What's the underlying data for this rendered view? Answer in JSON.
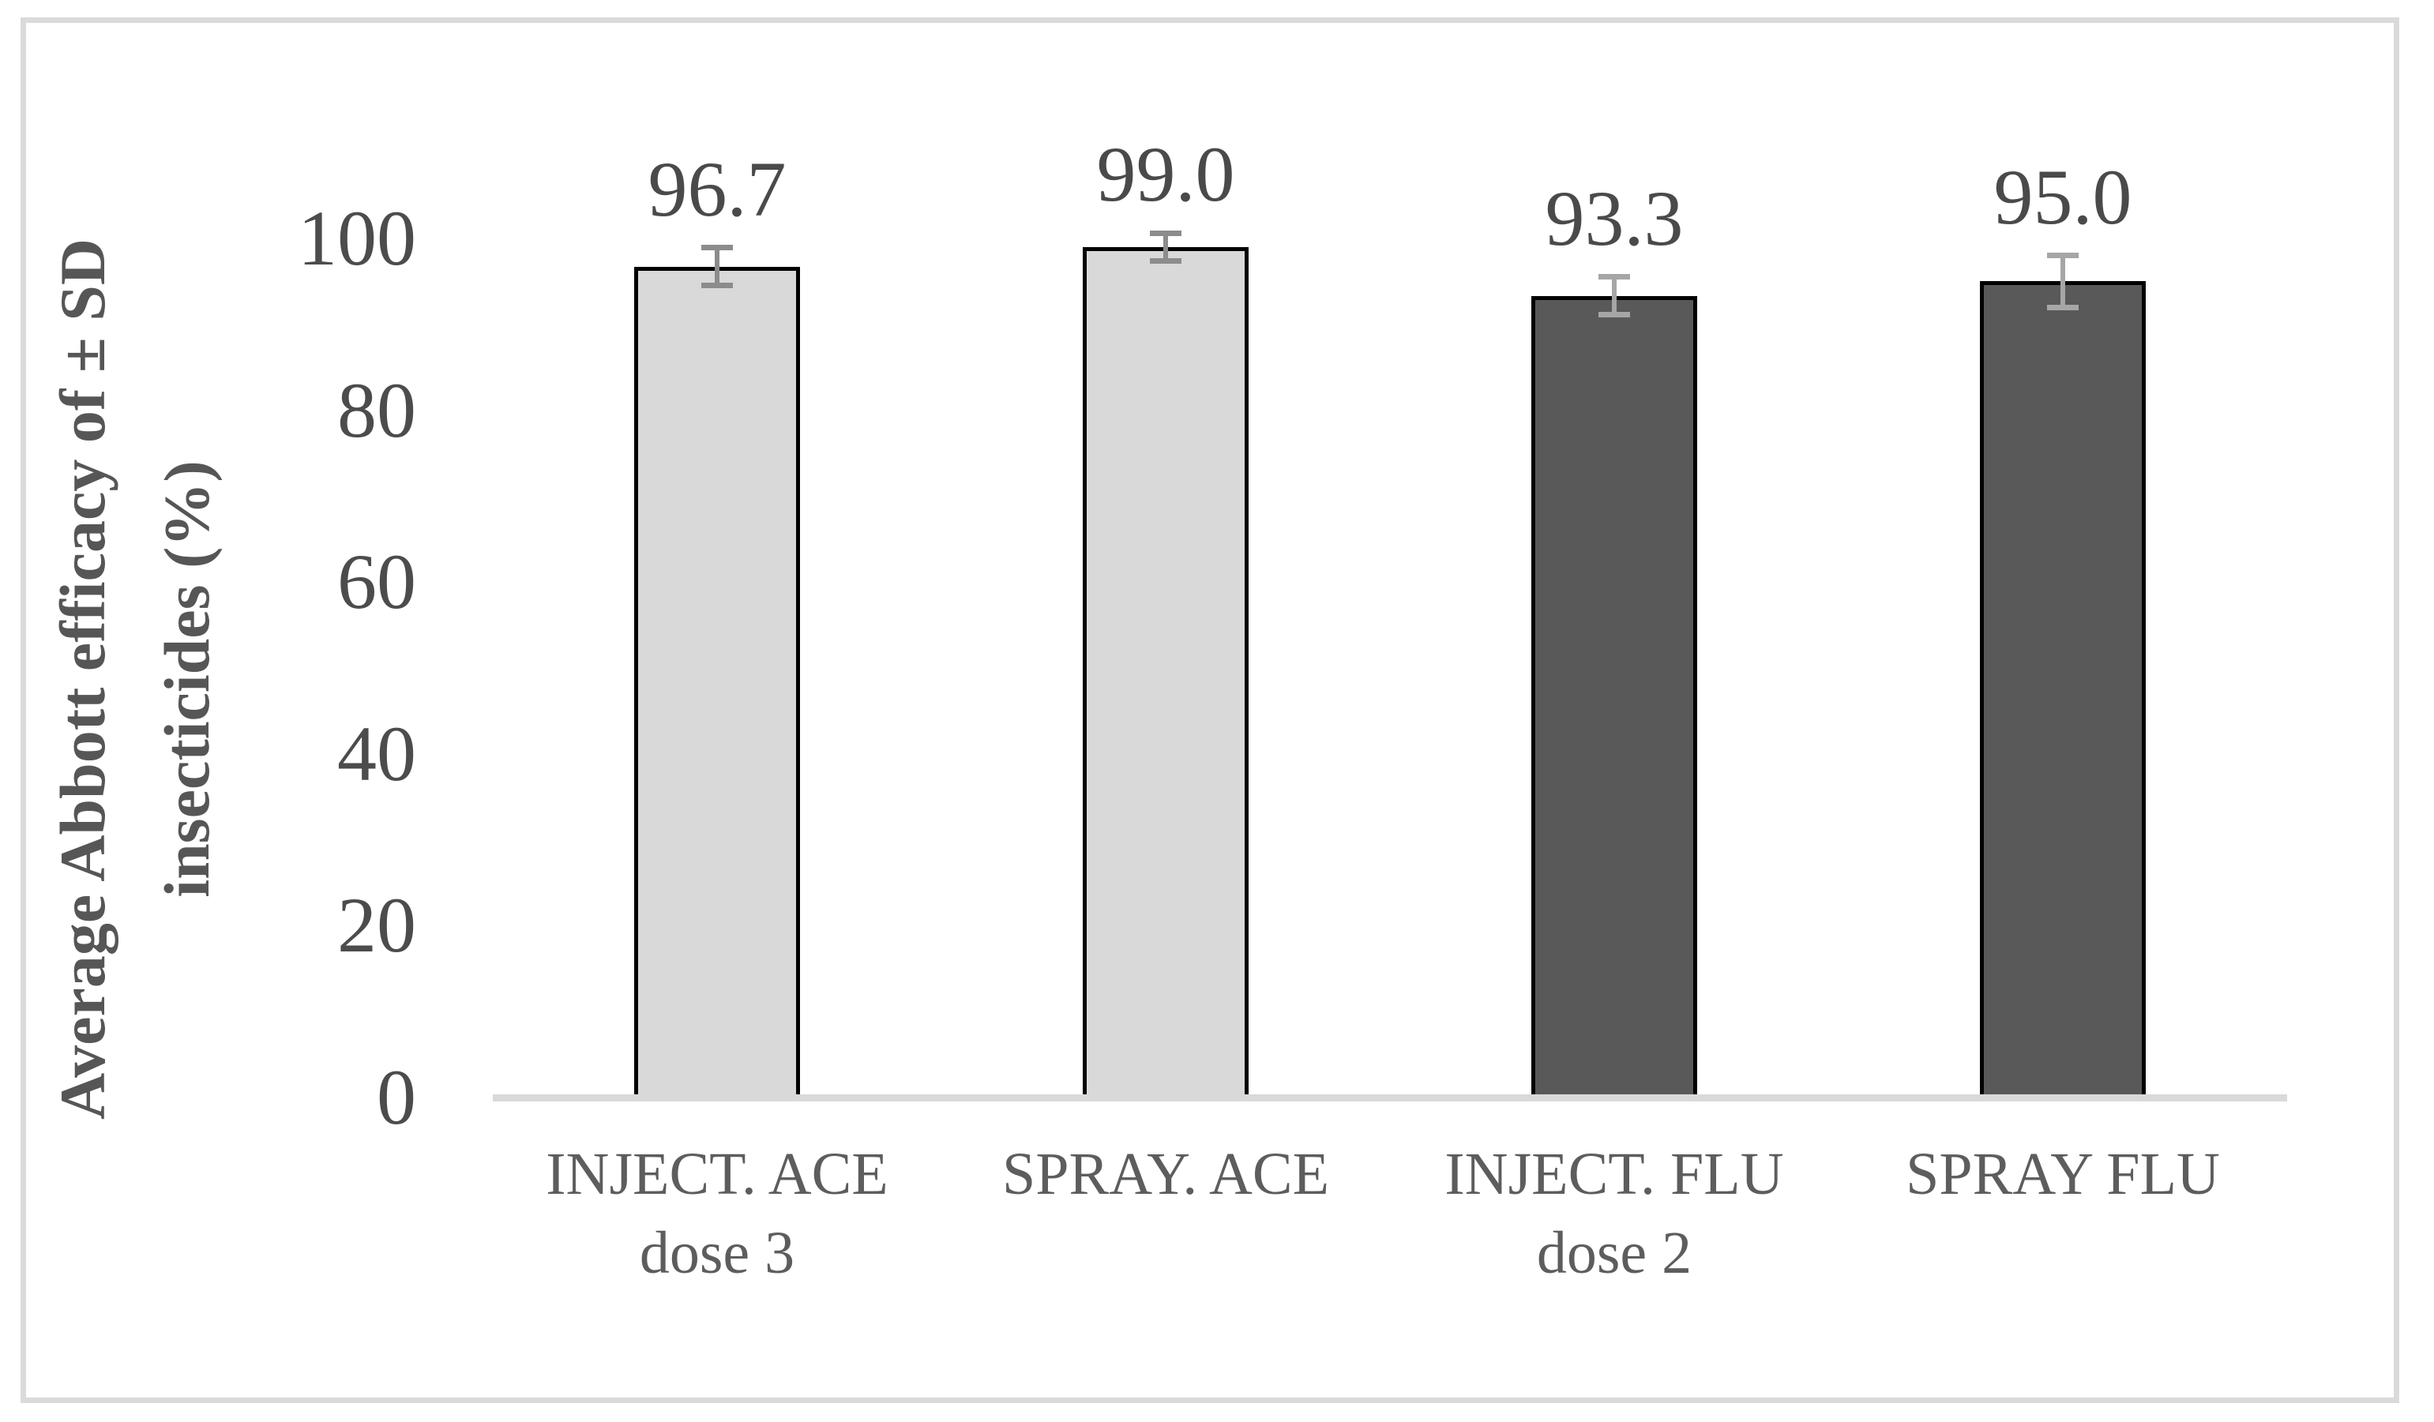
{
  "figure": {
    "background": "#ffffff",
    "frame_border_color": "#dadada"
  },
  "chart_data": {
    "type": "bar",
    "title": "",
    "xlabel": "",
    "ylabel_lines": [
      "Average Abbott efficacy of ± SD",
      "insecticides (%)"
    ],
    "categories": [
      {
        "label": "INJECT. ACE",
        "sublabel": "dose 3"
      },
      {
        "label": "SPRAY. ACE",
        "sublabel": ""
      },
      {
        "label": "INJECT. FLU",
        "sublabel": "dose 2"
      },
      {
        "label": "SPRAY FLU",
        "sublabel": ""
      }
    ],
    "values": [
      96.7,
      99.0,
      93.3,
      95.0
    ],
    "data_labels": [
      "96.7",
      "99.0",
      "93.3",
      "95.0"
    ],
    "sd_estimated": [
      2.2,
      1.6,
      2.2,
      3.0
    ],
    "yticks": [
      0,
      20,
      40,
      60,
      80,
      100
    ],
    "ylim": [
      0,
      110
    ],
    "grid": false,
    "legend": "none",
    "bar_colors": [
      "#d9d9d9",
      "#d9d9d9",
      "#595959",
      "#595959"
    ],
    "bar_border_color": "#000000",
    "error_bar_colors": [
      "#8c8c8c",
      "#8c8c8c",
      "#a6a6a6",
      "#a6a6a6"
    ],
    "axis_line_color": "#d9d9d9",
    "tick_text_color": "#4c4c4c",
    "data_label_color": "#4a4a4a",
    "category_text_color": "#5d5d5d",
    "ylabel_color": "#565656"
  }
}
